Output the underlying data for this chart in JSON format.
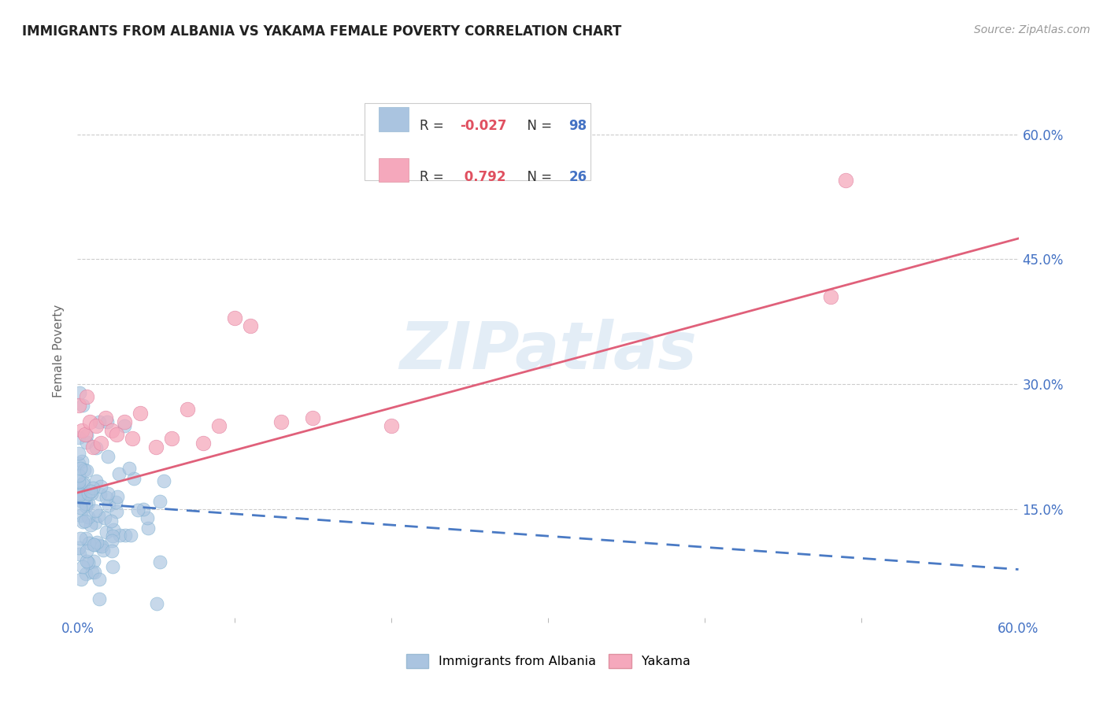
{
  "title": "IMMIGRANTS FROM ALBANIA VS YAKAMA FEMALE POVERTY CORRELATION CHART",
  "source": "Source: ZipAtlas.com",
  "ylabel": "Female Poverty",
  "xlim": [
    0.0,
    0.6
  ],
  "ylim": [
    0.02,
    0.66
  ],
  "xtick_major_labels": [
    "0.0%",
    "60.0%"
  ],
  "xtick_major_values": [
    0.0,
    0.6
  ],
  "xtick_minor_values": [
    0.1,
    0.2,
    0.3,
    0.4,
    0.5
  ],
  "ytick_labels": [
    "15.0%",
    "30.0%",
    "45.0%",
    "60.0%"
  ],
  "ytick_values": [
    0.15,
    0.3,
    0.45,
    0.6
  ],
  "blue_R": -0.027,
  "blue_N": 98,
  "pink_R": 0.792,
  "pink_N": 26,
  "blue_color": "#aac4e0",
  "pink_color": "#f5a8bc",
  "blue_line_color": "#4a7ac4",
  "pink_line_color": "#e0607a",
  "watermark": "ZIPatlas",
  "legend_x_label": "Immigrants from Albania",
  "legend_y_label": "Yakama",
  "blue_line_y_start": 0.158,
  "blue_line_y_end": 0.078,
  "pink_line_y_start": 0.17,
  "pink_line_y_end": 0.475,
  "pink_scatter_x": [
    0.001,
    0.003,
    0.005,
    0.006,
    0.008,
    0.01,
    0.012,
    0.015,
    0.018,
    0.022,
    0.025,
    0.03,
    0.035,
    0.04,
    0.05,
    0.06,
    0.07,
    0.08,
    0.09,
    0.1,
    0.11,
    0.13,
    0.15,
    0.2,
    0.48,
    0.49
  ],
  "pink_scatter_y": [
    0.275,
    0.245,
    0.24,
    0.285,
    0.255,
    0.225,
    0.25,
    0.23,
    0.26,
    0.245,
    0.24,
    0.255,
    0.235,
    0.265,
    0.225,
    0.235,
    0.27,
    0.23,
    0.25,
    0.38,
    0.37,
    0.255,
    0.26,
    0.25,
    0.405,
    0.545
  ]
}
